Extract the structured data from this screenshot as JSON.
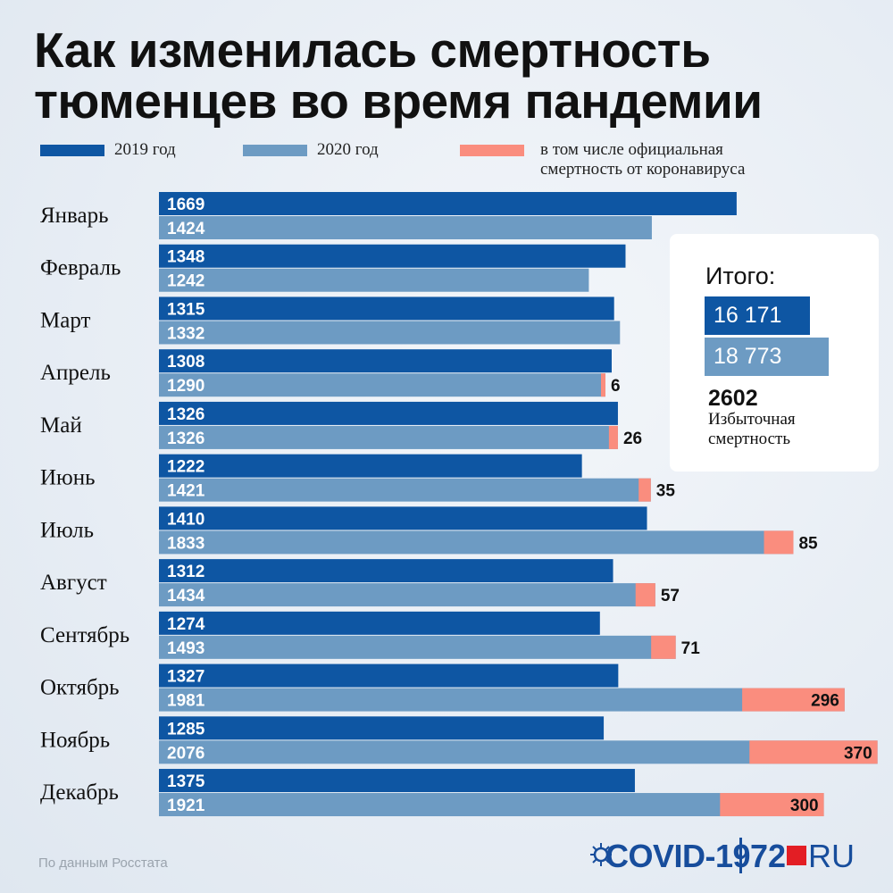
{
  "title_line1": "Как изменилась смертность",
  "title_line2": "тюменцев во время пандемии",
  "legend": {
    "y2019": "2019 год",
    "y2020": "2020 год",
    "covid_line1": "в том числе официальная",
    "covid_line2": "смертность от коронавируса"
  },
  "colors": {
    "y2019": "#0e56a3",
    "y2020": "#6d9bc3",
    "covid": "#fa8d7e"
  },
  "chart_data": {
    "type": "bar",
    "orientation": "horizontal",
    "categories": [
      "Январь",
      "Февраль",
      "Март",
      "Апрель",
      "Май",
      "Июнь",
      "Июль",
      "Август",
      "Сентябрь",
      "Октябрь",
      "Ноябрь",
      "Декабрь"
    ],
    "series": [
      {
        "name": "2019 год",
        "values": [
          1669,
          1348,
          1315,
          1308,
          1326,
          1222,
          1410,
          1312,
          1274,
          1327,
          1285,
          1375
        ]
      },
      {
        "name": "2020 год",
        "values": [
          1424,
          1242,
          1332,
          1290,
          1326,
          1421,
          1833,
          1434,
          1493,
          1981,
          2076,
          1921
        ]
      },
      {
        "name": "в том числе официальная смертность от коронавируса",
        "values": [
          null,
          null,
          null,
          6,
          26,
          35,
          85,
          57,
          71,
          296,
          370,
          300
        ]
      }
    ]
  },
  "totals": {
    "title": "Итого:",
    "total2019": "16 171",
    "total2020": "18 773",
    "excess_value": "2602",
    "excess_label_line1": "Избыточная",
    "excess_label_line2": "смертность"
  },
  "source": "По данным Росстата",
  "logo": {
    "covid_text": "COVID-19",
    "brand_num": "72",
    "brand_ru": "RU"
  }
}
